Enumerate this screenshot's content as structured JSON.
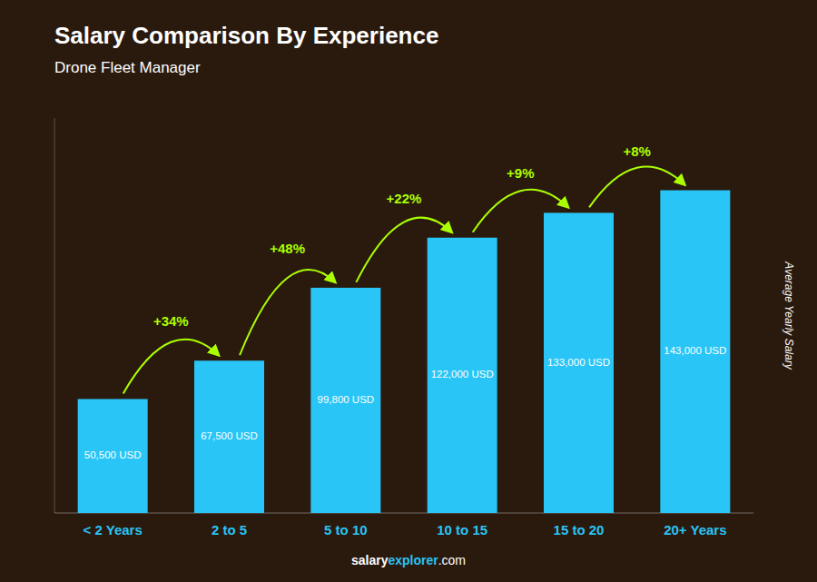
{
  "chart_data": {
    "type": "bar",
    "title": "Salary Comparison By Experience",
    "subtitle": "Drone Fleet Manager",
    "categories": [
      "< 2 Years",
      "2 to 5",
      "5 to 10",
      "10 to 15",
      "15 to 20",
      "20+ Years"
    ],
    "values": [
      50500,
      67500,
      99800,
      122000,
      133000,
      143000
    ],
    "value_labels": [
      "50,500 USD",
      "67,500 USD",
      "99,800 USD",
      "122,000 USD",
      "133,000 USD",
      "143,000 USD"
    ],
    "data_labels": true,
    "annotations": [
      "+34%",
      "+48%",
      "+22%",
      "+9%",
      "+8%"
    ],
    "color": "#29c5f6",
    "ylim": [
      0,
      175000
    ],
    "tick_labels": "x",
    "ylabel": "Average Yearly Salary",
    "footer": [
      "salary",
      "explorer",
      ".com"
    ]
  }
}
